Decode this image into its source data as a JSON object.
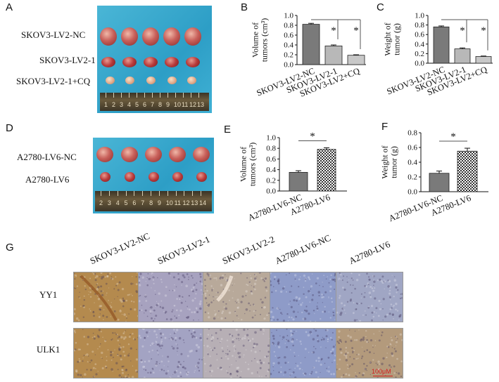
{
  "panels": {
    "A": {
      "letter": "A",
      "groups": [
        "SKOV3-LV2-NC",
        "SKOV3-LV2-1",
        "SKOV3-LV2-1+CQ"
      ],
      "ruler_numbers": [
        "1",
        "2",
        "3",
        "4",
        "5",
        "6",
        "7",
        "8",
        "9",
        "10",
        "11",
        "12",
        "13"
      ]
    },
    "D": {
      "letter": "D",
      "groups": [
        "A2780-LV6-NC",
        "A2780-LV6"
      ],
      "ruler_numbers": [
        "2",
        "3",
        "4",
        "5",
        "6",
        "7",
        "8",
        "9",
        "10",
        "11",
        "12",
        "13",
        "14"
      ]
    },
    "G": {
      "letter": "G",
      "columns": [
        "SKOV3-LV2-NC",
        "SKOV3-LV2-1",
        "SKOV3-LV2-2",
        "A2780-LV6-NC",
        "A2780-LV6"
      ],
      "rows": [
        "YY1",
        "ULK1"
      ],
      "scale_bar": "100μM",
      "colors": {
        "brown_stain": "#b48a4e",
        "blue_stain": "#8e9bc8"
      }
    }
  },
  "chart_data": [
    {
      "panel": "B",
      "type": "bar",
      "categories": [
        "SKOV3-LV2-NC",
        "SKOV3-LV2-1",
        "SKOV3-LV2+CQ"
      ],
      "values": [
        0.82,
        0.38,
        0.19
      ],
      "errors": [
        0.02,
        0.02,
        0.01
      ],
      "ylabel": "Volume of tumors (cm³)",
      "ylim": [
        0,
        1.0
      ],
      "yticks": [
        "0.0",
        "0.2",
        "0.4",
        "0.6",
        "0.8",
        "1.0"
      ],
      "significance": [
        "*",
        "*"
      ],
      "bar_colors": [
        "#7a7a7a",
        "#b8b8b8",
        "#c8c8c8"
      ]
    },
    {
      "panel": "C",
      "type": "bar",
      "categories": [
        "SKOV3-LV2-NC",
        "SKOV3-LV2-1",
        "SKOV3-LV2+CQ"
      ],
      "values": [
        0.76,
        0.3,
        0.14
      ],
      "errors": [
        0.02,
        0.02,
        0.01
      ],
      "ylabel": "Weight of tumor (g)",
      "ylim": [
        0,
        1.0
      ],
      "yticks": [
        "0.0",
        "0.2",
        "0.4",
        "0.6",
        "0.8",
        "1.0"
      ],
      "significance": [
        "*",
        "*"
      ],
      "bar_colors": [
        "#7a7a7a",
        "#b8b8b8",
        "#c8c8c8"
      ]
    },
    {
      "panel": "E",
      "type": "bar",
      "categories": [
        "A2780-LV6-NC",
        "A2780-LV6"
      ],
      "values": [
        0.35,
        0.78
      ],
      "errors": [
        0.03,
        0.03
      ],
      "ylabel": "Volume of tumors (cm³)",
      "ylim": [
        0,
        1.0
      ],
      "yticks": [
        "0.0",
        "0.2",
        "0.4",
        "0.6",
        "0.8",
        "1.0"
      ],
      "significance": [
        "*"
      ],
      "bar_colors": [
        "#7a7a7a",
        "#b0b0b0"
      ]
    },
    {
      "panel": "F",
      "type": "bar",
      "categories": [
        "A2780-LV6-NC",
        "A2780-LV6"
      ],
      "values": [
        0.25,
        0.55
      ],
      "errors": [
        0.03,
        0.04
      ],
      "ylabel": "Weight of tumor (g)",
      "ylim": [
        0,
        0.8
      ],
      "yticks": [
        "0.0",
        "0.2",
        "0.4",
        "0.6",
        "0.8"
      ],
      "significance": [
        "*"
      ],
      "bar_colors": [
        "#7a7a7a",
        "#b0b0b0"
      ]
    }
  ]
}
